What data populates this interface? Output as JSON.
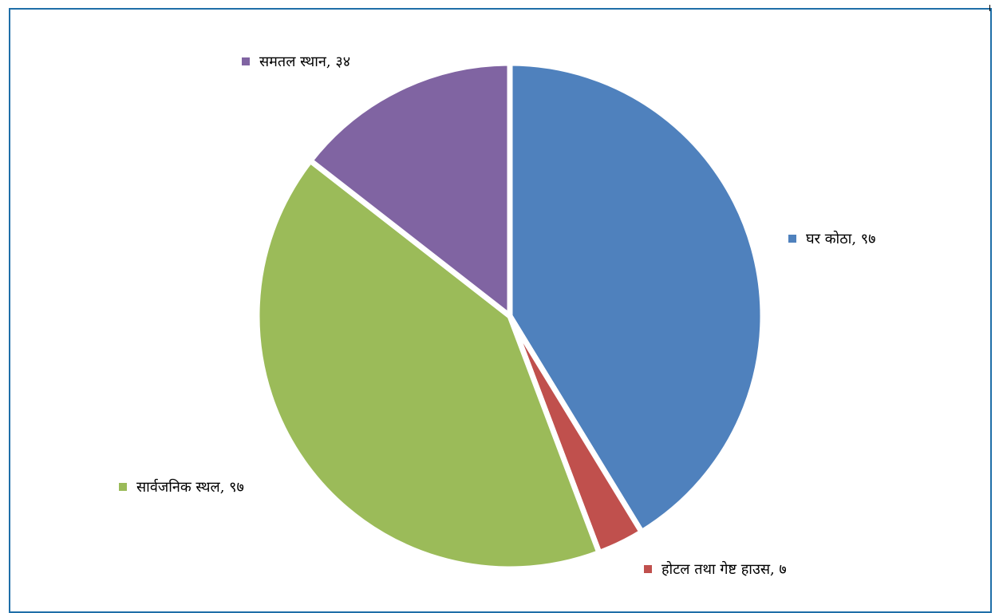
{
  "chart_data": {
    "type": "pie",
    "title": "",
    "slices": [
      {
        "label": "घर कोठा",
        "value": 97,
        "display_value": "९७",
        "color": "#4f81bd"
      },
      {
        "label": "होटल तथा गेष्ट हाउस",
        "value": 7,
        "display_value": "७",
        "color": "#c0504d"
      },
      {
        "label": "सार्वजनिक स्थल",
        "value": 97,
        "display_value": "९७",
        "color": "#9bbb59"
      },
      {
        "label": "समतल स्थान",
        "value": 34,
        "display_value": "३४",
        "color": "#8064a2"
      }
    ],
    "data_labels": [
      "घर कोठा, ९७",
      "होटल तथा गेष्ट हाउस, ७",
      "सार्वजनिक स्थल, ९७",
      "समतल स्थान, ३४"
    ],
    "start_angle": "12 o'clock",
    "direction": "clockwise",
    "legend": "none"
  }
}
